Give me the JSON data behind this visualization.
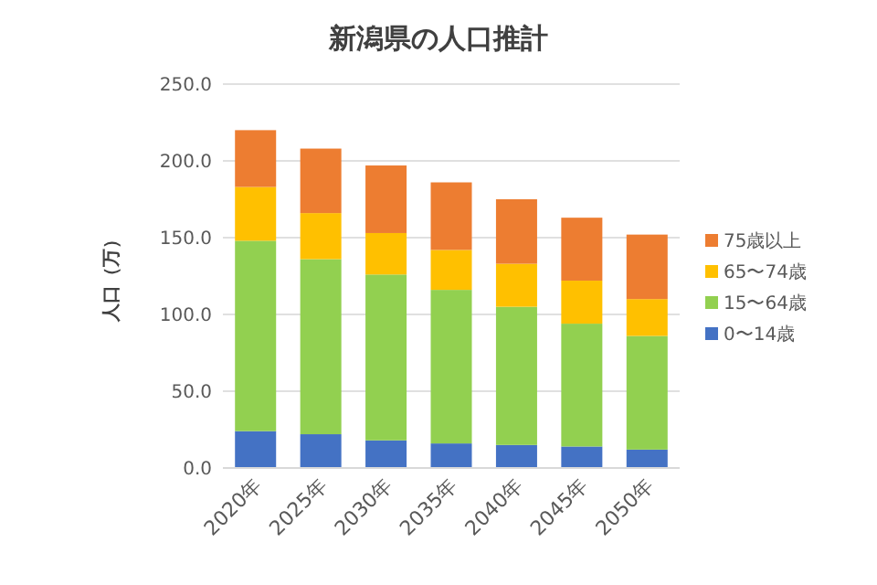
{
  "chart_data": {
    "type": "bar",
    "stacked": true,
    "title": "新潟県の人口推計",
    "ylabel": "人口（万）",
    "categories": [
      "2020年",
      "2025年",
      "2030年",
      "2035年",
      "2040年",
      "2045年",
      "2050年"
    ],
    "series": [
      {
        "name": "0〜14歳",
        "color": "#4472c4",
        "values": [
          24,
          22,
          18,
          16,
          15,
          14,
          12
        ]
      },
      {
        "name": "15〜64歳",
        "color": "#92d050",
        "values": [
          124,
          114,
          108,
          100,
          90,
          80,
          74
        ]
      },
      {
        "name": "65〜74歳",
        "color": "#ffc000",
        "values": [
          35,
          30,
          27,
          26,
          28,
          28,
          24
        ]
      },
      {
        "name": "75歳以上",
        "color": "#ed7d31",
        "values": [
          37,
          42,
          44,
          44,
          42,
          41,
          42
        ]
      }
    ],
    "ylim": [
      0,
      250
    ],
    "yticks": [
      {
        "value": 0,
        "label": "0.0"
      },
      {
        "value": 50,
        "label": "50.0"
      },
      {
        "value": 100,
        "label": "100.0"
      },
      {
        "value": 150,
        "label": "150.0"
      },
      {
        "value": 200,
        "label": "200.0"
      },
      {
        "value": 250,
        "label": "250.0"
      }
    ],
    "grid": "y",
    "legend": "right"
  }
}
